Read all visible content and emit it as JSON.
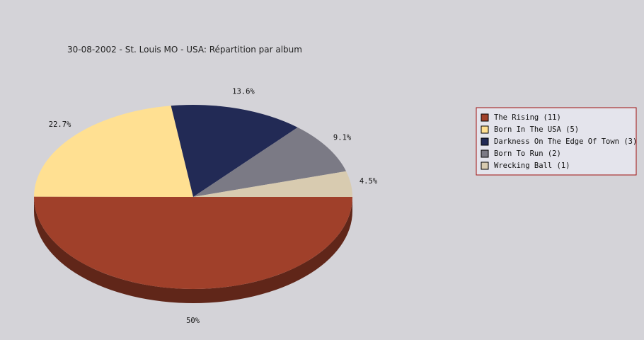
{
  "chart_data": {
    "type": "pie",
    "title": "30-08-2002 - St. Louis MO - USA:  Répartition par album",
    "categories": [
      "The Rising (11)",
      "Born In The USA (5)",
      "Darkness On The Edge Of Town (3)",
      "Born To Run (2)",
      "Wrecking Ball (1)"
    ],
    "values": [
      50,
      22.7,
      13.6,
      9.1,
      4.5
    ],
    "value_labels": [
      "50%",
      "22.7%",
      "13.6%",
      "9.1%",
      "4.5%"
    ],
    "colors": [
      "#a0402a",
      "#ffe092",
      "#222a55",
      "#7b7a85",
      "#d8cbb0"
    ],
    "legend": "right"
  }
}
